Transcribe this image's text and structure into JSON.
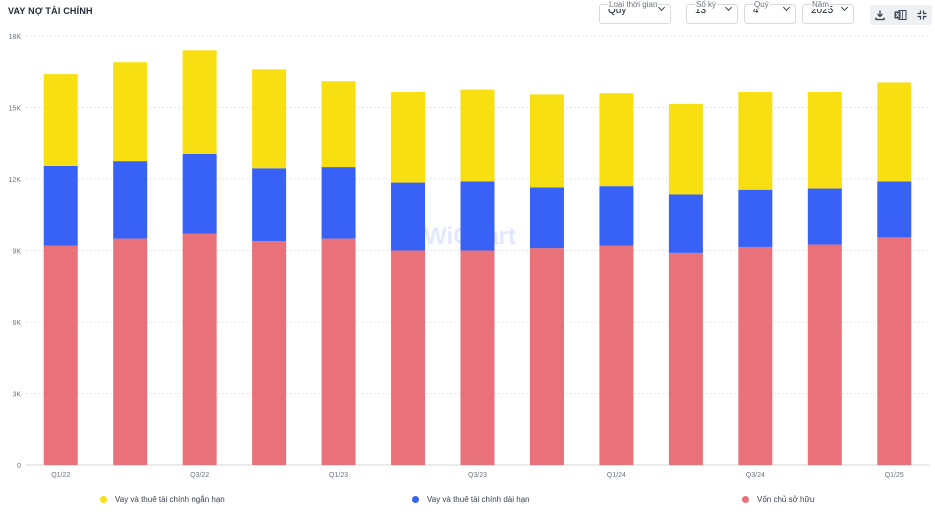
{
  "header": {
    "title": "VAY NỢ TÀI CHÍNH"
  },
  "controls": {
    "period_type": {
      "label": "Loại thời gian",
      "value": "Quý"
    },
    "periods": {
      "label": "Số kỳ",
      "value": "13"
    },
    "quarter": {
      "label": "Quý",
      "value": "4"
    },
    "year": {
      "label": "Năm",
      "value": "2025"
    }
  },
  "toolbar": {
    "icons": [
      "download-icon",
      "excel-icon",
      "collapse-icon"
    ]
  },
  "watermark": {
    "text": "WiChart"
  },
  "colors": {
    "short_term": "#f7df12",
    "long_term": "#3861f6",
    "equity": "#e8717a",
    "grid": "#e5e7eb"
  },
  "chart_data": {
    "type": "bar",
    "stacked": true,
    "title": "VAY NỢ TÀI CHÍNH",
    "categories": [
      "Q1/22",
      "Q2/22",
      "Q3/22",
      "Q4/22",
      "Q1/23",
      "Q2/23",
      "Q3/23",
      "Q4/23",
      "Q1/24",
      "Q2/24",
      "Q3/24",
      "Q4/24",
      "Q1/25"
    ],
    "tick_labels": [
      "Q1/22",
      "",
      "Q3/22",
      "",
      "Q1/23",
      "",
      "Q3/23",
      "",
      "Q1/24",
      "",
      "Q3/24",
      "",
      "Q1/25"
    ],
    "y_ticks": [
      "0",
      "3K",
      "6K",
      "9K",
      "12K",
      "15K",
      "18K"
    ],
    "ylim": [
      0,
      18000
    ],
    "grid": true,
    "legend_position": "bottom",
    "series": [
      {
        "name": "Vốn chủ sở hữu",
        "color": "#e8717a",
        "values": [
          9200,
          9500,
          9700,
          9400,
          9500,
          9000,
          9000,
          9100,
          9200,
          8900,
          9150,
          9250,
          9550
        ]
      },
      {
        "name": "Vay và thuê tài chính dài hạn",
        "color": "#3861f6",
        "values": [
          3350,
          3250,
          3350,
          3050,
          3000,
          2850,
          2900,
          2550,
          2500,
          2450,
          2400,
          2350,
          2350
        ]
      },
      {
        "name": "Vay và thuê tài chính ngắn hạn",
        "color": "#f7df12",
        "values": [
          3850,
          4150,
          4350,
          4150,
          3600,
          3800,
          3850,
          3900,
          3900,
          3800,
          4100,
          4050,
          4150
        ]
      }
    ],
    "legend": [
      "Vay và thuê tài chính ngắn hạn",
      "Vay và thuê tài chính dài hạn",
      "Vốn chủ sở hữu"
    ]
  }
}
